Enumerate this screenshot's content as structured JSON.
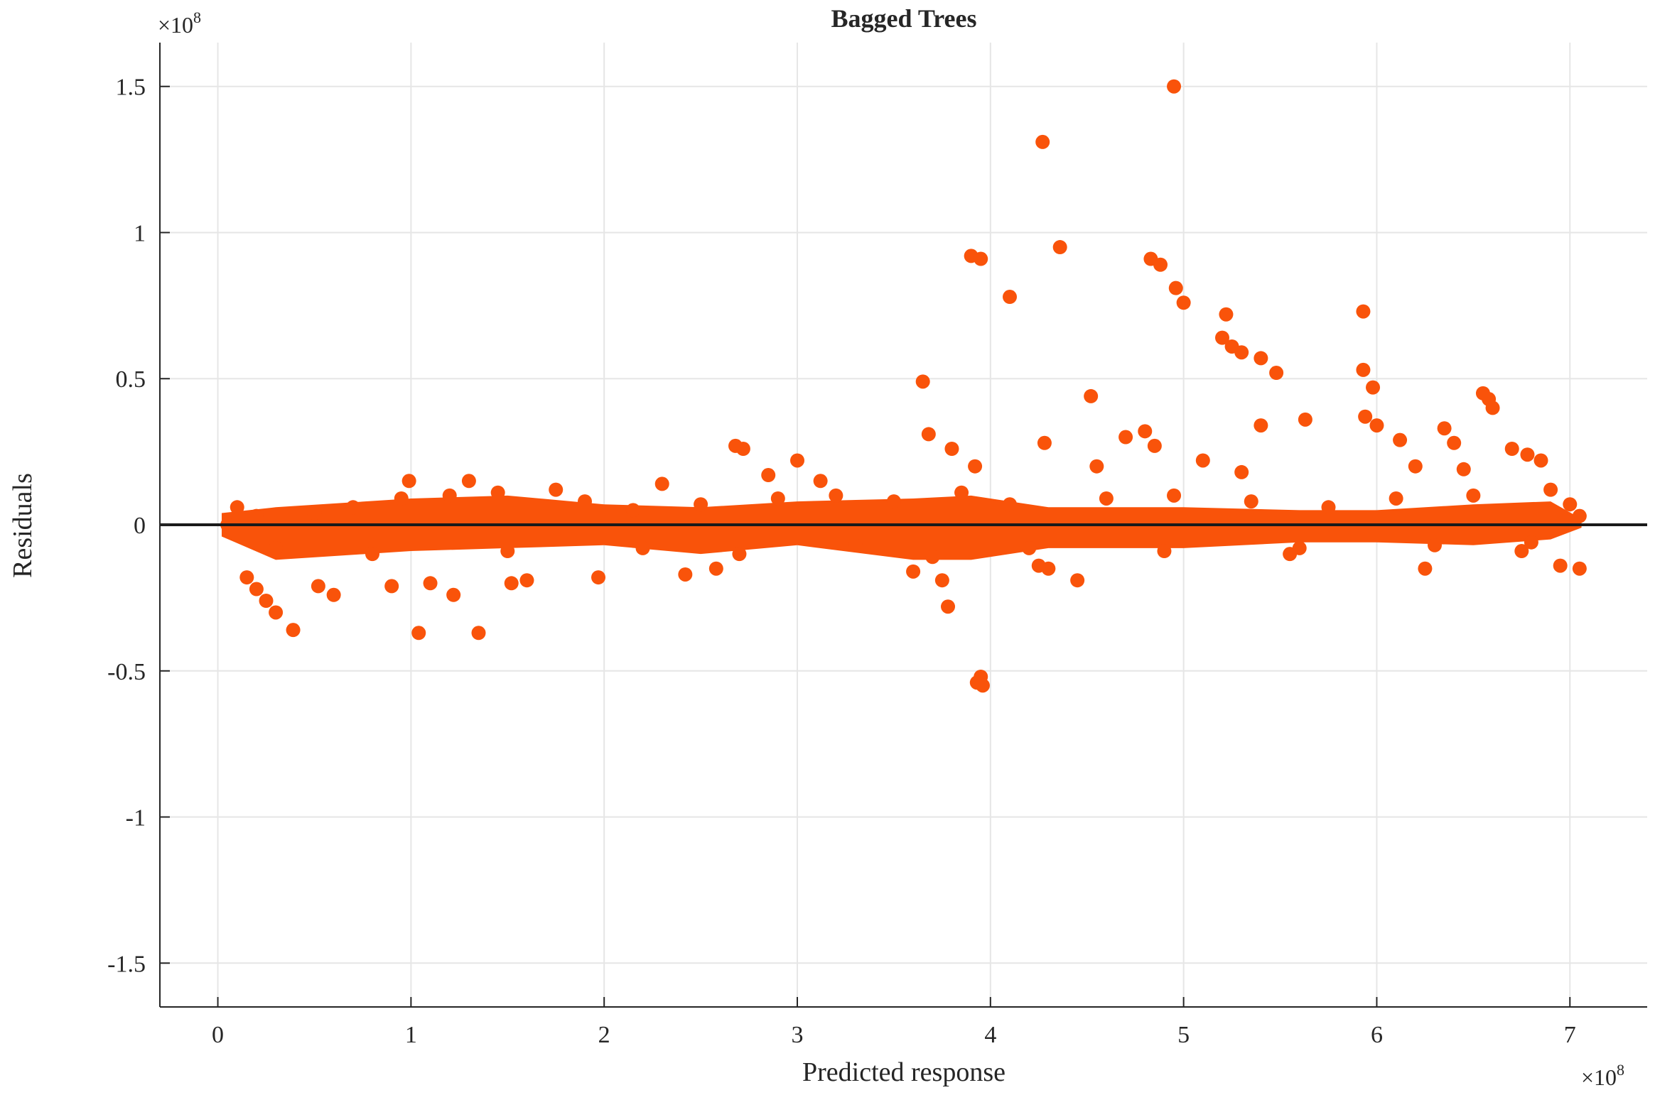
{
  "chart_data": {
    "type": "scatter",
    "title": "Bagged Trees",
    "xlabel": "Predicted response",
    "ylabel": "Residuals",
    "x_multiplier": "×10",
    "x_exponent": "8",
    "y_multiplier": "×10",
    "y_exponent": "8",
    "xlim": [
      -0.3,
      7.4
    ],
    "ylim": [
      -1.65,
      1.65
    ],
    "xticks": [
      0,
      1,
      2,
      3,
      4,
      5,
      6,
      7
    ],
    "xtick_labels": [
      "0",
      "1",
      "2",
      "3",
      "4",
      "5",
      "6",
      "7"
    ],
    "yticks": [
      -1.5,
      -1,
      -0.5,
      0,
      0.5,
      1,
      1.5
    ],
    "ytick_labels": [
      "-1.5",
      "-1",
      "-0.5",
      "0",
      "0.5",
      "1",
      "1.5"
    ],
    "grid": true,
    "marker_color": "#F9530A",
    "zero_line_color": "#1a1a1a",
    "points": [
      [
        4.95,
        1.5
      ],
      [
        4.27,
        1.31
      ],
      [
        4.36,
        0.95
      ],
      [
        3.9,
        0.92
      ],
      [
        3.95,
        0.91
      ],
      [
        4.1,
        0.78
      ],
      [
        4.83,
        0.91
      ],
      [
        4.88,
        0.89
      ],
      [
        4.96,
        0.81
      ],
      [
        5.0,
        0.76
      ],
      [
        5.22,
        0.72
      ],
      [
        5.2,
        0.64
      ],
      [
        5.25,
        0.61
      ],
      [
        5.3,
        0.59
      ],
      [
        5.4,
        0.57
      ],
      [
        5.48,
        0.52
      ],
      [
        5.93,
        0.73
      ],
      [
        5.93,
        0.53
      ],
      [
        5.98,
        0.47
      ],
      [
        5.94,
        0.37
      ],
      [
        6.0,
        0.34
      ],
      [
        3.65,
        0.49
      ],
      [
        4.52,
        0.44
      ],
      [
        6.55,
        0.45
      ],
      [
        6.58,
        0.43
      ],
      [
        6.6,
        0.4
      ],
      [
        3.68,
        0.31
      ],
      [
        4.28,
        0.28
      ],
      [
        4.7,
        0.3
      ],
      [
        4.8,
        0.32
      ],
      [
        4.85,
        0.27
      ],
      [
        5.4,
        0.34
      ],
      [
        5.63,
        0.36
      ],
      [
        6.12,
        0.29
      ],
      [
        6.35,
        0.33
      ],
      [
        6.4,
        0.28
      ],
      [
        2.68,
        0.27
      ],
      [
        2.72,
        0.26
      ],
      [
        3.0,
        0.22
      ],
      [
        2.85,
        0.17
      ],
      [
        3.8,
        0.26
      ],
      [
        3.92,
        0.2
      ],
      [
        4.55,
        0.2
      ],
      [
        5.1,
        0.22
      ],
      [
        5.3,
        0.18
      ],
      [
        6.7,
        0.26
      ],
      [
        6.78,
        0.24
      ],
      [
        6.85,
        0.22
      ],
      [
        6.2,
        0.2
      ],
      [
        6.45,
        0.19
      ],
      [
        2.3,
        0.14
      ],
      [
        1.3,
        0.15
      ],
      [
        0.99,
        0.15
      ],
      [
        3.12,
        0.15
      ],
      [
        3.95,
        -0.52
      ],
      [
        3.96,
        -0.55
      ],
      [
        3.93,
        -0.54
      ],
      [
        3.78,
        -0.28
      ],
      [
        3.75,
        -0.19
      ],
      [
        4.3,
        -0.15
      ],
      [
        4.45,
        -0.19
      ],
      [
        4.25,
        -0.14
      ],
      [
        1.04,
        -0.37
      ],
      [
        1.35,
        -0.37
      ],
      [
        0.39,
        -0.36
      ],
      [
        0.3,
        -0.3
      ],
      [
        0.25,
        -0.26
      ],
      [
        0.2,
        -0.22
      ],
      [
        0.15,
        -0.18
      ],
      [
        0.52,
        -0.21
      ],
      [
        0.6,
        -0.24
      ],
      [
        0.9,
        -0.21
      ],
      [
        1.1,
        -0.2
      ],
      [
        1.22,
        -0.24
      ],
      [
        1.6,
        -0.19
      ],
      [
        1.52,
        -0.2
      ],
      [
        1.97,
        -0.18
      ],
      [
        2.42,
        -0.17
      ],
      [
        2.58,
        -0.15
      ],
      [
        3.6,
        -0.16
      ],
      [
        6.25,
        -0.15
      ],
      [
        6.95,
        -0.14
      ],
      [
        7.05,
        -0.15
      ],
      [
        6.75,
        -0.09
      ],
      [
        5.55,
        -0.1
      ],
      [
        0.05,
        0.0
      ],
      [
        0.1,
        0.06
      ],
      [
        0.2,
        0.03
      ],
      [
        0.5,
        0.04
      ],
      [
        0.7,
        0.06
      ],
      [
        0.95,
        0.09
      ],
      [
        1.2,
        0.1
      ],
      [
        1.45,
        0.11
      ],
      [
        1.75,
        0.12
      ],
      [
        1.9,
        0.08
      ],
      [
        2.15,
        0.05
      ],
      [
        2.5,
        0.07
      ],
      [
        2.9,
        0.09
      ],
      [
        3.2,
        0.1
      ],
      [
        3.5,
        0.08
      ],
      [
        3.85,
        0.11
      ],
      [
        4.1,
        0.07
      ],
      [
        4.6,
        0.09
      ],
      [
        4.95,
        0.1
      ],
      [
        5.35,
        0.08
      ],
      [
        5.75,
        0.06
      ],
      [
        6.1,
        0.09
      ],
      [
        6.5,
        0.1
      ],
      [
        6.9,
        0.12
      ],
      [
        7.0,
        0.07
      ],
      [
        7.05,
        0.03
      ],
      [
        0.3,
        -0.08
      ],
      [
        0.8,
        -0.1
      ],
      [
        1.5,
        -0.09
      ],
      [
        2.2,
        -0.08
      ],
      [
        2.7,
        -0.1
      ],
      [
        3.3,
        -0.07
      ],
      [
        3.7,
        -0.11
      ],
      [
        4.2,
        -0.08
      ],
      [
        4.9,
        -0.09
      ],
      [
        5.6,
        -0.08
      ],
      [
        6.3,
        -0.07
      ],
      [
        6.8,
        -0.06
      ]
    ]
  }
}
